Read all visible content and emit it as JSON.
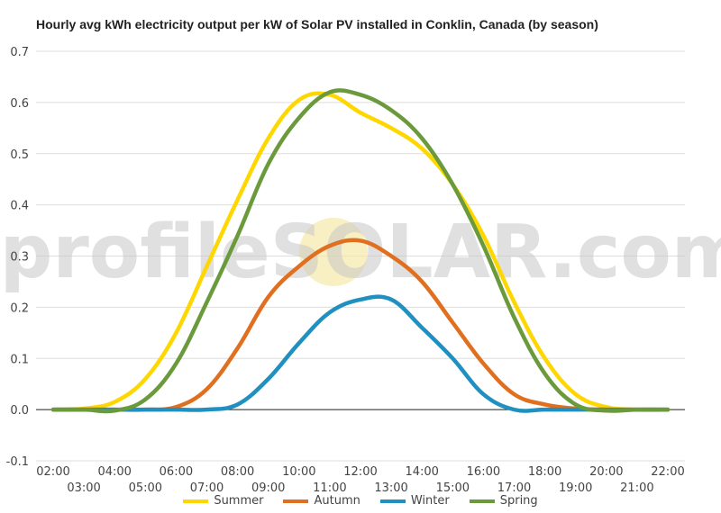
{
  "chart_data": {
    "type": "line",
    "title": "Hourly avg kWh electricity output per kW of Solar PV installed in Conklin, Canada (by season)",
    "xlabel": "",
    "ylabel": "",
    "ylim": [
      -0.1,
      0.7
    ],
    "yticks": [
      "-0.1",
      "0.0",
      "0.1",
      "0.2",
      "0.3",
      "0.4",
      "0.5",
      "0.6",
      "0.7"
    ],
    "x": [
      "02:00",
      "03:00",
      "04:00",
      "05:00",
      "06:00",
      "07:00",
      "08:00",
      "09:00",
      "10:00",
      "11:00",
      "12:00",
      "13:00",
      "14:00",
      "15:00",
      "16:00",
      "17:00",
      "18:00",
      "19:00",
      "20:00",
      "21:00",
      "22:00"
    ],
    "grid": true,
    "legend_position": "bottom",
    "series": [
      {
        "name": "Summer",
        "color": "#FFD700",
        "values": [
          0,
          0.002,
          0.015,
          0.06,
          0.15,
          0.28,
          0.41,
          0.53,
          0.605,
          0.615,
          0.58,
          0.55,
          0.51,
          0.44,
          0.34,
          0.21,
          0.1,
          0.03,
          0.005,
          0,
          0
        ]
      },
      {
        "name": "Autumn",
        "color": "#E07020",
        "values": [
          0,
          0,
          0,
          0,
          0.005,
          0.04,
          0.12,
          0.22,
          0.28,
          0.32,
          0.33,
          0.3,
          0.25,
          0.17,
          0.09,
          0.03,
          0.01,
          0.002,
          0,
          0,
          0
        ]
      },
      {
        "name": "Winter",
        "color": "#2090C0",
        "values": [
          0,
          0,
          0,
          0,
          0,
          0,
          0.01,
          0.06,
          0.13,
          0.19,
          0.215,
          0.215,
          0.16,
          0.1,
          0.03,
          0,
          0,
          0,
          0,
          0,
          0
        ]
      },
      {
        "name": "Spring",
        "color": "#6B9A3C",
        "values": [
          0,
          0,
          -0.002,
          0.02,
          0.09,
          0.21,
          0.34,
          0.48,
          0.57,
          0.62,
          0.615,
          0.585,
          0.53,
          0.44,
          0.32,
          0.18,
          0.07,
          0.01,
          -0.002,
          0,
          0
        ]
      }
    ]
  },
  "watermark": {
    "text": "profileSOLAR.com",
    "sun_color": "#F5E8A8"
  }
}
